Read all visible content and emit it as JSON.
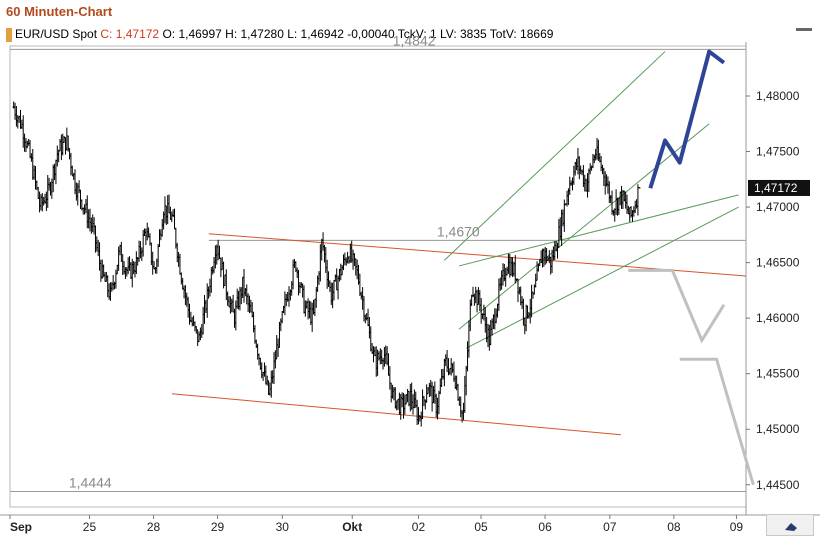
{
  "header": {
    "title": "60 Minuten-Chart",
    "instrument": "EUR/USD Spot",
    "close_label": "C:",
    "close_value": "1,47172",
    "rest": "O: 1,46997 H: 1,47280 L: 1,46942 -0,00040 TckV: 1 LV: 3835 TotV: 18669"
  },
  "chart_data": {
    "type": "candlestick",
    "title": "60 Minuten-Chart",
    "ylim": [
      1.443,
      1.4845
    ],
    "y_ticks": [
      "1,48000",
      "1,47500",
      "1,47000",
      "1,46500",
      "1,46000",
      "1,45500",
      "1,45000",
      "1,44500"
    ],
    "y_tick_values": [
      1.48,
      1.475,
      1.47,
      1.465,
      1.46,
      1.455,
      1.45,
      1.445
    ],
    "x_ticks": [
      "Sep",
      "25",
      "28",
      "29",
      "30",
      "Okt",
      "02",
      "05",
      "06",
      "07",
      "08",
      "09"
    ],
    "current_price_label": "1,47172",
    "current_price": 1.47172,
    "horizontal_levels": [
      {
        "label": "1,4842",
        "value": 1.4842
      },
      {
        "label": "1,4670",
        "value": 1.467
      },
      {
        "label": "1,4444",
        "value": 1.4444
      }
    ],
    "price_path": [
      1.479,
      1.4772,
      1.474,
      1.47,
      1.4715,
      1.475,
      1.476,
      1.472,
      1.47,
      1.468,
      1.464,
      1.462,
      1.466,
      1.464,
      1.465,
      1.468,
      1.464,
      1.47,
      1.469,
      1.464,
      1.46,
      1.458,
      1.462,
      1.467,
      1.463,
      1.46,
      1.463,
      1.46,
      1.456,
      1.453,
      1.458,
      1.462,
      1.465,
      1.461,
      1.46,
      1.467,
      1.462,
      1.464,
      1.466,
      1.464,
      1.46,
      1.456,
      1.457,
      1.453,
      1.452,
      1.453,
      1.451,
      1.454,
      1.452,
      1.456,
      1.455,
      1.451,
      1.463,
      1.461,
      1.458,
      1.462,
      1.465,
      1.464,
      1.46,
      1.462,
      1.466,
      1.465,
      1.468,
      1.472,
      1.474,
      1.472,
      1.475,
      1.473,
      1.47,
      1.471,
      1.469,
      1.4717
    ],
    "drawing_lines": [
      {
        "color": "#d9532c",
        "from": [
          0.27,
          1.4676
        ],
        "to": [
          1.0,
          1.4638
        ]
      },
      {
        "color": "#d9532c",
        "from": [
          0.22,
          1.4532
        ],
        "to": [
          0.83,
          1.4495
        ]
      },
      {
        "color": "#5a9a5a",
        "from": [
          0.59,
          1.4652
        ],
        "to": [
          0.89,
          1.484
        ]
      },
      {
        "color": "#5a9a5a",
        "from": [
          0.61,
          1.459
        ],
        "to": [
          0.95,
          1.4775
        ]
      },
      {
        "color": "#5a9a5a",
        "from": [
          0.62,
          1.4573
        ],
        "to": [
          0.99,
          1.47
        ]
      },
      {
        "color": "#5a9a5a",
        "from": [
          0.61,
          1.4647
        ],
        "to": [
          0.99,
          1.4711
        ]
      }
    ],
    "projection_blue": [
      [
        0.87,
        1.4717
      ],
      [
        0.89,
        1.476
      ],
      [
        0.91,
        1.474
      ],
      [
        0.95,
        1.484
      ],
      [
        0.97,
        1.483
      ]
    ],
    "projection_gray": [
      [
        0.84,
        1.4643
      ],
      [
        0.9,
        1.4643
      ],
      [
        0.94,
        1.458
      ],
      [
        0.97,
        1.4612
      ],
      [
        0.91,
        1.4563
      ],
      [
        0.96,
        1.4563
      ],
      [
        1.01,
        1.445
      ]
    ]
  }
}
